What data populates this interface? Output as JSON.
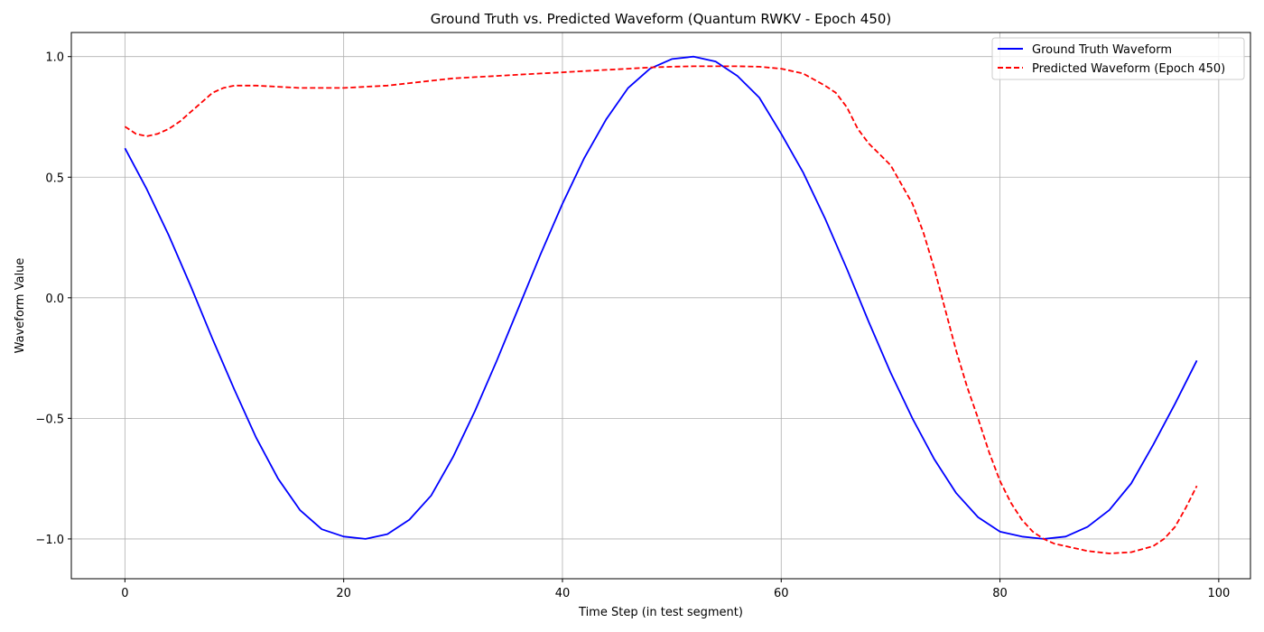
{
  "chart_data": {
    "type": "line",
    "title": "Ground Truth vs. Predicted Waveform (Quantum RWKV - Epoch 450)",
    "xlabel": "Time Step (in test segment)",
    "ylabel": "Waveform Value",
    "xlim": [
      -4.9,
      102.9
    ],
    "ylim": [
      -1.165,
      1.1
    ],
    "xticks": [
      0,
      20,
      40,
      60,
      80,
      100
    ],
    "xtick_labels": [
      "0",
      "20",
      "40",
      "60",
      "80",
      "100"
    ],
    "yticks": [
      -1.0,
      -0.5,
      0.0,
      0.5,
      1.0
    ],
    "ytick_labels": [
      "−1.0",
      "−0.5",
      "0.0",
      "0.5",
      "1.0"
    ],
    "grid": true,
    "legend_position": "top-right",
    "series": [
      {
        "name": "Ground Truth Waveform",
        "color": "#0000ff",
        "style": "solid",
        "x": [
          0,
          2,
          4,
          6,
          8,
          10,
          12,
          14,
          16,
          18,
          20,
          22,
          24,
          26,
          28,
          30,
          32,
          34,
          36,
          38,
          40,
          42,
          44,
          46,
          48,
          50,
          52,
          54,
          56,
          58,
          60,
          62,
          64,
          66,
          68,
          70,
          72,
          74,
          76,
          78,
          80,
          82,
          84,
          86,
          88,
          90,
          92,
          94,
          96,
          98
        ],
        "y": [
          0.62,
          0.45,
          0.26,
          0.05,
          -0.17,
          -0.38,
          -0.58,
          -0.75,
          -0.88,
          -0.96,
          -0.99,
          -1.0,
          -0.98,
          -0.92,
          -0.82,
          -0.66,
          -0.47,
          -0.26,
          -0.04,
          0.18,
          0.39,
          0.58,
          0.74,
          0.87,
          0.95,
          0.99,
          1.0,
          0.98,
          0.92,
          0.83,
          0.68,
          0.52,
          0.33,
          0.12,
          -0.1,
          -0.31,
          -0.5,
          -0.67,
          -0.81,
          -0.91,
          -0.97,
          -0.99,
          -1.0,
          -0.99,
          -0.95,
          -0.88,
          -0.77,
          -0.61,
          -0.44,
          -0.26
        ]
      },
      {
        "name": "Predicted Waveform (Epoch 450)",
        "color": "#ff0000",
        "style": "dashed",
        "x": [
          0,
          1,
          2,
          3,
          4,
          5,
          6,
          7,
          8,
          9,
          10,
          12,
          14,
          16,
          18,
          20,
          22,
          24,
          26,
          28,
          30,
          32,
          34,
          36,
          38,
          40,
          42,
          44,
          46,
          48,
          50,
          52,
          54,
          56,
          58,
          60,
          62,
          64,
          65,
          66,
          67,
          68,
          70,
          72,
          73,
          74,
          75,
          76,
          77,
          78,
          79,
          80,
          81,
          82,
          83,
          84,
          85,
          86,
          88,
          90,
          92,
          94,
          95,
          96,
          97,
          98
        ],
        "y": [
          0.71,
          0.68,
          0.67,
          0.68,
          0.7,
          0.73,
          0.77,
          0.81,
          0.85,
          0.87,
          0.88,
          0.88,
          0.875,
          0.87,
          0.87,
          0.87,
          0.875,
          0.88,
          0.89,
          0.9,
          0.91,
          0.915,
          0.92,
          0.925,
          0.93,
          0.935,
          0.94,
          0.945,
          0.95,
          0.955,
          0.958,
          0.96,
          0.96,
          0.96,
          0.958,
          0.95,
          0.93,
          0.88,
          0.85,
          0.79,
          0.7,
          0.64,
          0.55,
          0.39,
          0.27,
          0.12,
          -0.05,
          -0.22,
          -0.37,
          -0.5,
          -0.64,
          -0.76,
          -0.85,
          -0.92,
          -0.97,
          -1.0,
          -1.02,
          -1.03,
          -1.05,
          -1.06,
          -1.055,
          -1.03,
          -1.0,
          -0.95,
          -0.87,
          -0.78
        ]
      }
    ]
  }
}
